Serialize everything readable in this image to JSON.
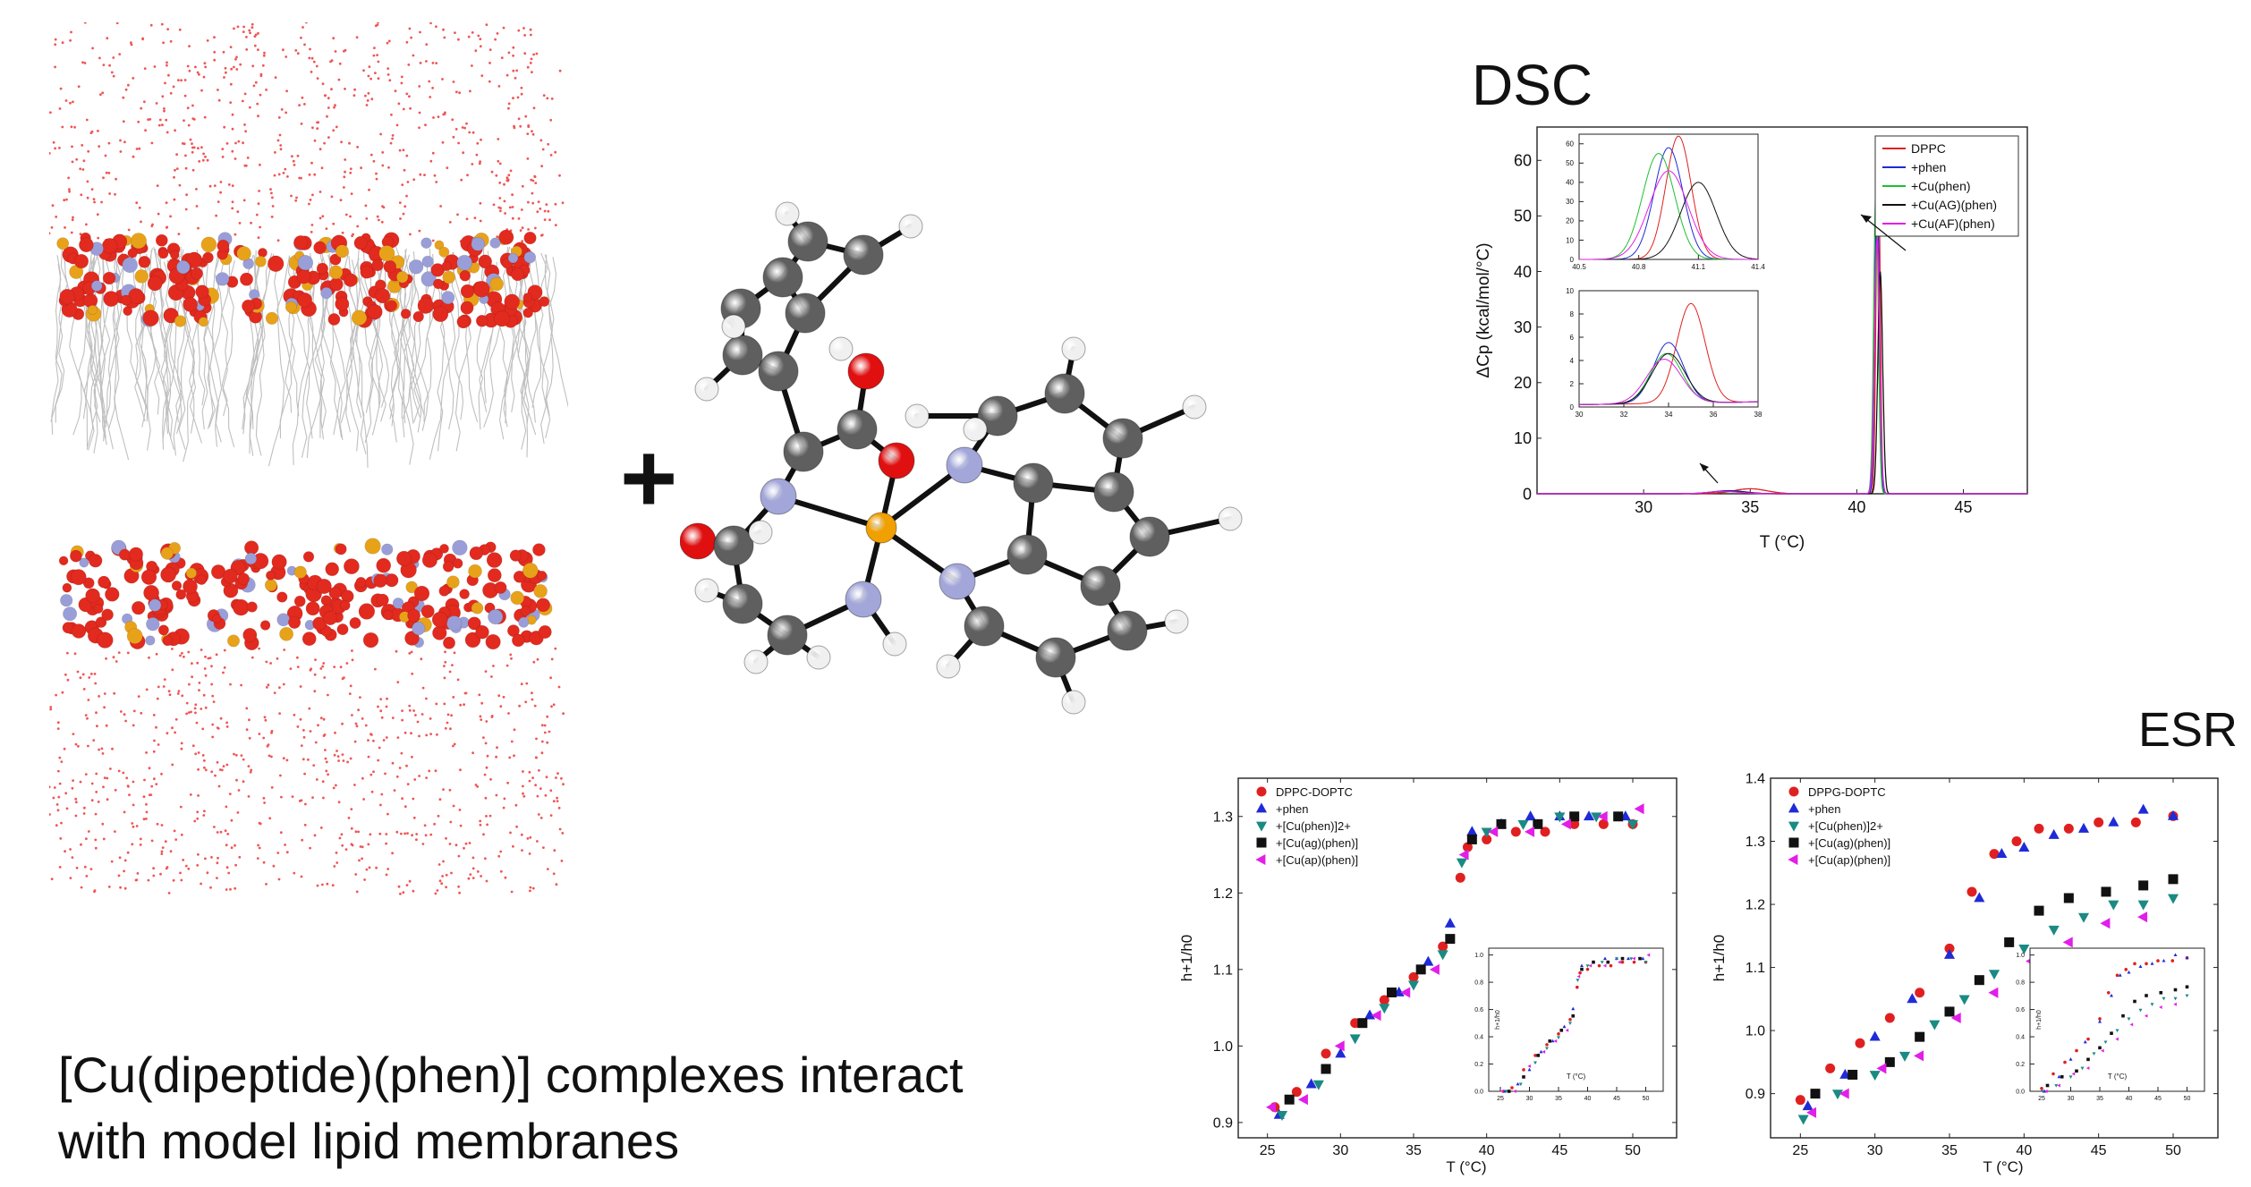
{
  "titles": {
    "dsc": "DSC",
    "esr": "ESR"
  },
  "plus_sign": "+",
  "caption": {
    "line1": "[Cu(dipeptide)(phen)] complexes interact",
    "line2": "with model lipid membranes"
  },
  "colors": {
    "red": "#e02020",
    "blue": "#1f2bd6",
    "teal": "#1a8a83",
    "black": "#111111",
    "magenta": "#e21ee8",
    "green": "#1fbf2f",
    "atom_c": "#5f5f5f",
    "atom_n": "#a2a6d8",
    "atom_o": "#e01010",
    "atom_cu": "#f0a000",
    "atom_h": "#f0f0f0"
  },
  "chart_data": [
    {
      "id": "dsc",
      "type": "line",
      "xlabel": "T (°C)",
      "ylabel": "ΔCp (kcal/mol/°C)",
      "xlim": [
        25,
        48
      ],
      "ylim": [
        0,
        66
      ],
      "xticks": [
        "30",
        "35",
        "40",
        "45"
      ],
      "yticks": [
        "0",
        "10",
        "20",
        "30",
        "40",
        "50",
        "60"
      ],
      "legend": [
        "DPPC",
        "+phen",
        "+Cu(phen)",
        "+Cu(AG)(phen)",
        "+Cu(AF)(phen)"
      ],
      "legend_position": "top-right",
      "series": [
        {
          "name": "DPPC",
          "color": "#e02020",
          "main_peak": 64,
          "pre_peak": 0.9,
          "pre_x": 35.0,
          "main_x": 41.0
        },
        {
          "name": "+phen",
          "color": "#1f2bd6",
          "main_peak": 58,
          "pre_peak": 0.55,
          "pre_x": 34.0,
          "main_x": 40.95
        },
        {
          "name": "+Cu(phen)",
          "color": "#1fbf2f",
          "main_peak": 55,
          "pre_peak": 0.45,
          "pre_x": 33.9,
          "main_x": 40.9
        },
        {
          "name": "+Cu(AG)(phen)",
          "color": "#111111",
          "main_peak": 40,
          "pre_peak": 0.45,
          "pre_x": 34.0,
          "main_x": 41.1
        },
        {
          "name": "+Cu(AF)(phen)",
          "color": "#e21ee8",
          "main_peak": 46,
          "pre_peak": 0.4,
          "pre_x": 33.8,
          "main_x": 40.95
        }
      ],
      "inset_main": {
        "xlim": [
          40.5,
          41.4
        ],
        "ylim": [
          0,
          65
        ],
        "xticks": [
          "40.5",
          "40.8",
          "41.1",
          "41.4"
        ],
        "yticks": [
          "0",
          "10",
          "20",
          "30",
          "40",
          "50",
          "60"
        ]
      },
      "inset_pre": {
        "xlim": [
          30,
          38
        ],
        "ylim": [
          0,
          10
        ],
        "xticks": [
          "30",
          "32",
          "34",
          "36",
          "38"
        ],
        "yticks": [
          "0",
          "2",
          "4",
          "6",
          "8",
          "10"
        ]
      }
    },
    {
      "id": "esr_dppc",
      "type": "scatter",
      "xlabel": "T (°C)",
      "ylabel": "h+1/h0",
      "xlim": [
        23,
        53
      ],
      "ylim": [
        0.88,
        1.35
      ],
      "xticks": [
        "25",
        "30",
        "35",
        "40",
        "45",
        "50"
      ],
      "yticks": [
        "0.9",
        "1.0",
        "1.1",
        "1.2",
        "1.3"
      ],
      "legend": [
        "DPPC-DOPTC",
        "+phen",
        "+[Cu(phen)]2+",
        "+[Cu(ag)(phen)]",
        "+[Cu(ap)(phen)]"
      ],
      "legend_position": "top-left",
      "series": [
        {
          "name": "DPPC-DOPTC",
          "x": [
            25.5,
            27,
            29,
            31,
            33,
            35,
            37,
            38.2,
            38.7,
            40,
            42,
            44,
            46,
            48,
            50
          ],
          "y": [
            0.92,
            0.94,
            0.99,
            1.03,
            1.06,
            1.09,
            1.13,
            1.22,
            1.26,
            1.27,
            1.28,
            1.28,
            1.29,
            1.29,
            1.29
          ]
        },
        {
          "name": "+phen",
          "x": [
            25.8,
            28,
            30,
            32,
            34,
            36,
            37.5,
            39,
            41,
            43,
            45,
            47,
            49.5
          ],
          "y": [
            0.91,
            0.95,
            0.99,
            1.04,
            1.07,
            1.11,
            1.16,
            1.28,
            1.29,
            1.3,
            1.3,
            1.3,
            1.3
          ]
        },
        {
          "name": "+[Cu(phen)]2+",
          "x": [
            26,
            28.5,
            31,
            33,
            35,
            37,
            38.3,
            40,
            42.5,
            45,
            47.5,
            50
          ],
          "y": [
            0.91,
            0.95,
            1.01,
            1.05,
            1.08,
            1.12,
            1.24,
            1.28,
            1.29,
            1.3,
            1.3,
            1.29
          ]
        },
        {
          "name": "+[Cu(ag)(phen)]",
          "x": [
            26.5,
            29,
            31.5,
            33.5,
            35.5,
            37.5,
            39,
            41,
            43.5,
            46,
            49
          ],
          "y": [
            0.93,
            0.97,
            1.03,
            1.07,
            1.1,
            1.14,
            1.27,
            1.29,
            1.29,
            1.3,
            1.3
          ]
        },
        {
          "name": "+[Cu(ap)(phen)]",
          "x": [
            25.3,
            27.5,
            30,
            32.5,
            34.5,
            36.5,
            38.5,
            40.5,
            43,
            45.5,
            48,
            50.5
          ],
          "y": [
            0.92,
            0.93,
            1.0,
            1.04,
            1.07,
            1.1,
            1.25,
            1.28,
            1.28,
            1.29,
            1.3,
            1.31
          ]
        }
      ],
      "inset": {
        "xlim": [
          23,
          53
        ],
        "ylim": [
          0,
          1.05
        ],
        "xticks": [
          "25",
          "30",
          "35",
          "40",
          "45",
          "50"
        ],
        "yticks": [
          "0.0",
          "0.2",
          "0.4",
          "0.6",
          "0.8",
          "1.0"
        ],
        "xlabel": "T (°C)",
        "ylabel": "h+1/h0"
      }
    },
    {
      "id": "esr_dppg",
      "type": "scatter",
      "xlabel": "T (°C)",
      "ylabel": "h+1/h0",
      "xlim": [
        23,
        53
      ],
      "ylim": [
        0.83,
        1.4
      ],
      "xticks": [
        "25",
        "30",
        "35",
        "40",
        "45",
        "50"
      ],
      "yticks": [
        "0.9",
        "1.0",
        "1.1",
        "1.2",
        "1.3",
        "1.4"
      ],
      "legend": [
        "DPPG-DOPTC",
        "+phen",
        "+[Cu(phen)]2+",
        "+[Cu(ag)(phen)]",
        "+[Cu(ap)(phen)]"
      ],
      "legend_position": "top-left",
      "series": [
        {
          "name": "DPPG-DOPTC",
          "x": [
            25,
            27,
            29,
            31,
            33,
            35,
            36.5,
            38,
            39.5,
            41,
            43,
            45,
            47.5,
            50
          ],
          "y": [
            0.89,
            0.94,
            0.98,
            1.02,
            1.06,
            1.13,
            1.22,
            1.28,
            1.3,
            1.32,
            1.32,
            1.33,
            1.33,
            1.34
          ]
        },
        {
          "name": "+phen",
          "x": [
            25.5,
            28,
            30,
            32.5,
            35,
            37,
            38.5,
            40,
            42,
            44,
            46,
            48,
            50
          ],
          "y": [
            0.88,
            0.93,
            0.99,
            1.05,
            1.12,
            1.21,
            1.28,
            1.29,
            1.31,
            1.32,
            1.33,
            1.35,
            1.34
          ]
        },
        {
          "name": "+[Cu(phen)]2+",
          "x": [
            25.2,
            27.5,
            30,
            32,
            34,
            36,
            38,
            40,
            42,
            44,
            46,
            48,
            50
          ],
          "y": [
            0.86,
            0.9,
            0.93,
            0.96,
            1.01,
            1.05,
            1.09,
            1.13,
            1.16,
            1.18,
            1.2,
            1.2,
            1.21
          ]
        },
        {
          "name": "+[Cu(ag)(phen)]",
          "x": [
            26,
            28.5,
            31,
            33,
            35,
            37,
            39,
            41,
            43,
            45.5,
            48,
            50
          ],
          "y": [
            0.9,
            0.93,
            0.95,
            0.99,
            1.03,
            1.08,
            1.14,
            1.19,
            1.21,
            1.22,
            1.23,
            1.24
          ]
        },
        {
          "name": "+[Cu(ap)(phen)]",
          "x": [
            25.8,
            28,
            30.5,
            33,
            35.5,
            38,
            40.5,
            43,
            45.5,
            48
          ],
          "y": [
            0.87,
            0.9,
            0.94,
            0.96,
            1.02,
            1.06,
            1.11,
            1.14,
            1.17,
            1.18
          ]
        }
      ],
      "inset": {
        "xlim": [
          23,
          53
        ],
        "ylim": [
          0,
          1.05
        ],
        "xticks": [
          "25",
          "30",
          "35",
          "40",
          "45",
          "50"
        ],
        "yticks": [
          "0.0",
          "0.2",
          "0.4",
          "0.6",
          "0.8",
          "1.0"
        ],
        "xlabel": "T (°C)",
        "ylabel": "h+1/h0"
      }
    }
  ]
}
